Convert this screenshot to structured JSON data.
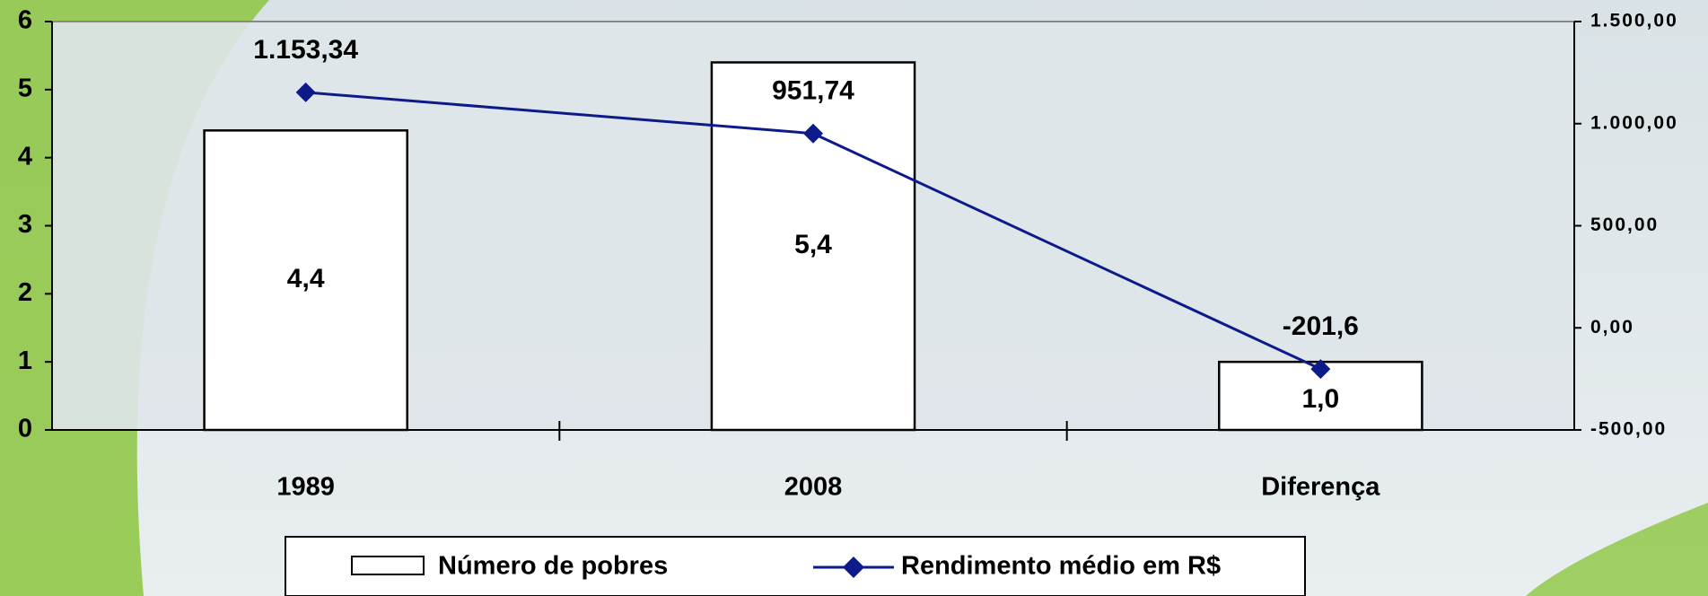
{
  "chart_data": {
    "type": "bar",
    "categories": [
      "1989",
      "2008",
      "Diferença"
    ],
    "series": [
      {
        "name": "Número de pobres",
        "type": "bar",
        "color": "#ffffff",
        "values": [
          4.4,
          5.4,
          1.0
        ],
        "value_labels": [
          "4,4",
          "5,4",
          "1,0"
        ]
      },
      {
        "name": "Rendimento médio em R$",
        "type": "line",
        "axis": "y2",
        "color": "#0d1a8a",
        "values": [
          1153.34,
          951.74,
          -201.6
        ],
        "value_labels": [
          "1.153,34",
          "951,74",
          "-201,6"
        ]
      }
    ],
    "ylim": [
      0,
      6
    ],
    "yticks": [
      0,
      1,
      2,
      3,
      4,
      5,
      6
    ],
    "y2lim": [
      -500,
      1500
    ],
    "y2ticks": [
      {
        "value": -500,
        "label": "-500,00"
      },
      {
        "value": 0,
        "label": "0,00"
      },
      {
        "value": 500,
        "label": "500,00"
      },
      {
        "value": 1000,
        "label": "1.000,00"
      },
      {
        "value": 1500,
        "label": "1.500,00"
      }
    ],
    "legend": "bottom"
  }
}
